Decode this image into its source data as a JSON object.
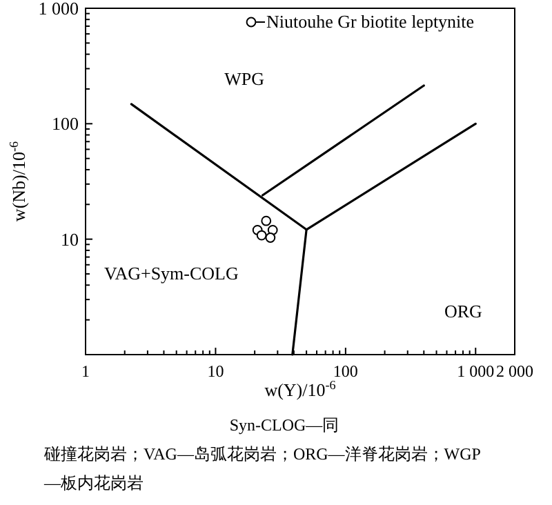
{
  "chart_data": {
    "type": "scatter",
    "xlabel": "w(Y)/10$^{-6}$",
    "ylabel": "w(Nb)/10$^{-6}$",
    "log": "xy",
    "xlim": [
      1,
      2000
    ],
    "ylim": [
      1,
      1000
    ],
    "xticks": [
      1,
      {
        "value": 2,
        "label": null
      },
      {
        "value": 3,
        "label": null
      },
      {
        "value": 4,
        "label": null
      },
      {
        "value": 5,
        "label": null
      },
      {
        "value": 6,
        "label": null
      },
      {
        "value": 7,
        "label": null
      },
      {
        "value": 8,
        "label": null
      },
      {
        "value": 9,
        "label": null
      },
      10,
      {
        "value": 20,
        "label": null
      },
      {
        "value": 30,
        "label": null
      },
      {
        "value": 40,
        "label": null
      },
      {
        "value": 50,
        "label": null
      },
      {
        "value": 60,
        "label": null
      },
      {
        "value": 70,
        "label": null
      },
      {
        "value": 80,
        "label": null
      },
      {
        "value": 90,
        "label": null
      },
      100,
      {
        "value": 200,
        "label": null
      },
      {
        "value": 300,
        "label": null
      },
      {
        "value": 400,
        "label": null
      },
      {
        "value": 500,
        "label": null
      },
      {
        "value": 600,
        "label": null
      },
      {
        "value": 700,
        "label": null
      },
      {
        "value": 800,
        "label": null
      },
      {
        "value": 900,
        "label": null
      },
      {
        "value": 1000,
        "label": "1 000"
      },
      {
        "value": 2000,
        "label": "2 000"
      }
    ],
    "yticks": [
      {
        "value": 2,
        "label": null
      },
      {
        "value": 3,
        "label": null
      },
      {
        "value": 4,
        "label": null
      },
      {
        "value": 5,
        "label": null
      },
      {
        "value": 6,
        "label": null
      },
      {
        "value": 7,
        "label": null
      },
      {
        "value": 8,
        "label": null
      },
      {
        "value": 9,
        "label": null
      },
      10,
      {
        "value": 20,
        "label": null
      },
      {
        "value": 30,
        "label": null
      },
      {
        "value": 40,
        "label": null
      },
      {
        "value": 50,
        "label": null
      },
      {
        "value": 60,
        "label": null
      },
      {
        "value": 70,
        "label": null
      },
      {
        "value": 80,
        "label": null
      },
      {
        "value": 90,
        "label": null
      },
      100,
      {
        "value": 200,
        "label": null
      },
      {
        "value": 300,
        "label": null
      },
      {
        "value": 400,
        "label": null
      },
      {
        "value": 500,
        "label": null
      },
      {
        "value": 600,
        "label": null
      },
      {
        "value": 700,
        "label": null
      },
      {
        "value": 800,
        "label": null
      },
      {
        "value": 900,
        "label": null
      },
      {
        "value": 1000,
        "label": "1 000"
      }
    ],
    "grid": false,
    "legend": "top right",
    "marker": "circle",
    "series": [
      {
        "name": "Niutouhe Gr biotite leptynite",
        "color": "#000000",
        "x": [
          24.5,
          21,
          22.6,
          27.5,
          26.4
        ],
        "values": [
          14.4,
          12,
          10.8,
          12,
          10.3
        ]
      },
      {
        "type": "line",
        "color": "#000000",
        "marker": "none",
        "x": [
          2.25,
          50
        ],
        "values": [
          148,
          12.1
        ]
      },
      {
        "type": "line",
        "color": "#000000",
        "marker": "none",
        "x": [
          23,
          400
        ],
        "values": [
          24,
          214
        ]
      },
      {
        "type": "line",
        "color": "#000000",
        "marker": "none",
        "x": [
          50,
          1000
        ],
        "values": [
          12.1,
          100
        ]
      },
      {
        "type": "line",
        "color": "#000000",
        "marker": "none",
        "x": [
          50,
          39
        ],
        "values": [
          12.1,
          1
        ]
      }
    ],
    "annotations": [
      "WPG",
      "VAG+Sym-COLG",
      "ORG",
      "Syn-CLOG—同碰撞花岗岩；VAG—岛弧花岗岩；ORG—洋脊花岗岩；WGP—板内花岗岩"
    ]
  }
}
